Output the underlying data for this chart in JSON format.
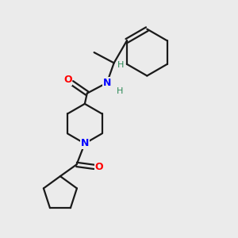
{
  "background_color": "#ebebeb",
  "bond_color": "#1a1a1a",
  "N_color": "#0000ff",
  "O_color": "#ff0000",
  "H_color": "#2e8b57",
  "figsize": [
    3.0,
    3.0
  ],
  "dpi": 100,
  "xlim": [
    0,
    10
  ],
  "ylim": [
    0,
    10
  ],
  "bond_lw": 1.6,
  "font_size_atom": 9,
  "font_size_H": 8
}
